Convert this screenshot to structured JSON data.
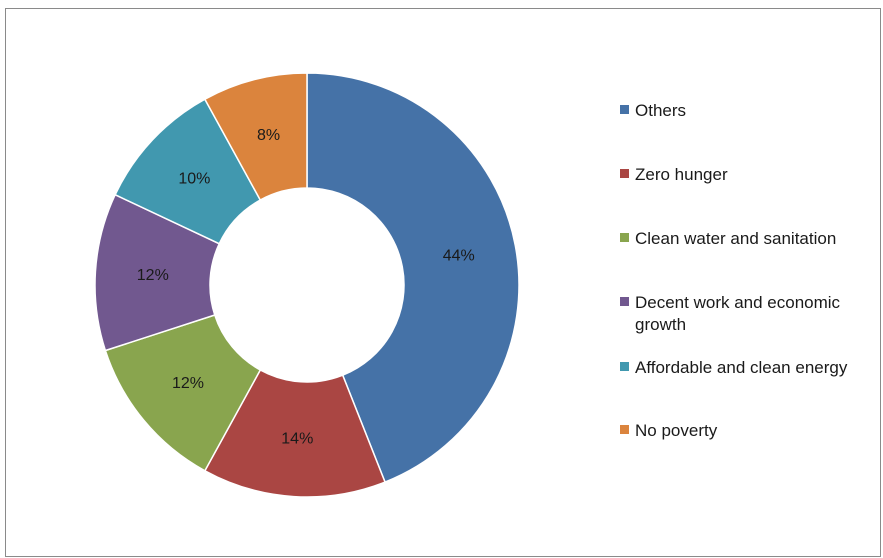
{
  "chart_data": {
    "type": "pie",
    "donut": true,
    "categories": [
      "Others",
      "Zero hunger",
      "Clean water and sanitation",
      "Decent work and economic growth",
      "Affordable and clean energy",
      "No poverty"
    ],
    "values": [
      44,
      14,
      12,
      12,
      10,
      8
    ],
    "labels": [
      "44%",
      "14%",
      "12%",
      "12%",
      "10%",
      "8%"
    ],
    "colors": [
      "#4572A7",
      "#AA4643",
      "#89A54E",
      "#71588F",
      "#4198AF",
      "#DB843D"
    ],
    "start_angle_deg": 0,
    "direction": "clockwise",
    "legend_position": "right",
    "title": ""
  }
}
